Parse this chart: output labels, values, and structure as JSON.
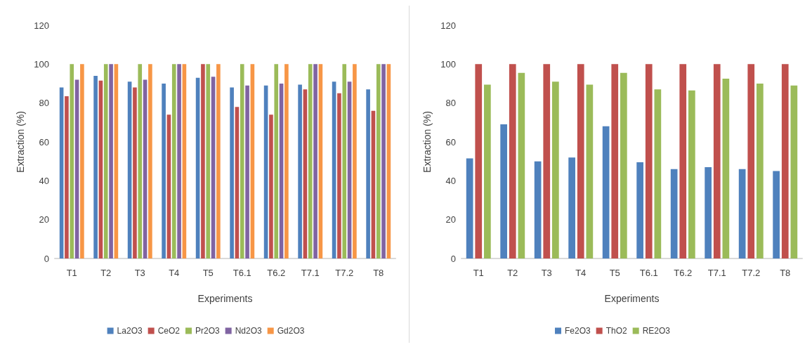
{
  "chart_data": [
    {
      "type": "bar",
      "xlabel": "Experiments",
      "ylabel": "Extraction (%)",
      "categories": [
        "T1",
        "T2",
        "T3",
        "T4",
        "T5",
        "T6.1",
        "T6.2",
        "T7.1",
        "T7.2",
        "T8"
      ],
      "ylim": [
        0,
        120
      ],
      "yticks": [
        0,
        20,
        40,
        60,
        80,
        100,
        120
      ],
      "grid": false,
      "legend": "bottom",
      "series": [
        {
          "name": "La2O3",
          "color": "#4f81bd",
          "values": [
            88,
            94,
            91,
            90,
            93,
            88,
            89,
            89.5,
            91,
            87
          ]
        },
        {
          "name": "CeO2",
          "color": "#c0504d",
          "values": [
            83.5,
            91.5,
            88,
            74,
            100,
            78,
            74,
            87,
            85,
            76
          ]
        },
        {
          "name": "Pr2O3",
          "color": "#9bbb59",
          "values": [
            100,
            100,
            100,
            100,
            100,
            100,
            100,
            100,
            100,
            100
          ]
        },
        {
          "name": "Nd2O3",
          "color": "#8064a2",
          "values": [
            92,
            100,
            92,
            100,
            93.5,
            89,
            90,
            100,
            91,
            100
          ]
        },
        {
          "name": "Gd2O3",
          "color": "#f79646",
          "values": [
            100,
            100,
            100,
            100,
            100,
            100,
            100,
            100,
            100,
            100
          ]
        }
      ]
    },
    {
      "type": "bar",
      "xlabel": "Experiments",
      "ylabel": "Extraction (%)",
      "categories": [
        "T1",
        "T2",
        "T3",
        "T4",
        "T5",
        "T6.1",
        "T6.2",
        "T7.1",
        "T7.2",
        "T8"
      ],
      "ylim": [
        0,
        120
      ],
      "yticks": [
        0,
        20,
        40,
        60,
        80,
        100,
        120
      ],
      "grid": false,
      "legend": "bottom",
      "series": [
        {
          "name": "Fe2O3",
          "color": "#4f81bd",
          "values": [
            51.5,
            69,
            50,
            52,
            68,
            49.5,
            46,
            47,
            46,
            45
          ]
        },
        {
          "name": "ThO2",
          "color": "#c0504d",
          "values": [
            100,
            100,
            100,
            100,
            100,
            100,
            100,
            100,
            100,
            100
          ]
        },
        {
          "name": "RE2O3",
          "color": "#9bbb59",
          "values": [
            89.5,
            95.5,
            91,
            89.5,
            95.5,
            87,
            86.5,
            92.5,
            90,
            89
          ]
        }
      ]
    }
  ]
}
